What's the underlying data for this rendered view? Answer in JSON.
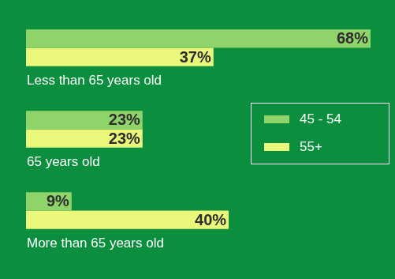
{
  "chart_data": {
    "type": "bar",
    "orientation": "horizontal",
    "categories": [
      "Less than 65 years old",
      "65 years old",
      "More than 65 years old"
    ],
    "series": [
      {
        "name": "45 - 54",
        "color": "#8fd36b",
        "values": [
          68,
          23,
          9
        ],
        "value_labels": [
          "68%",
          "23%",
          "9%"
        ]
      },
      {
        "name": "55+",
        "color": "#eaf77a",
        "values": [
          37,
          23,
          40
        ],
        "value_labels": [
          "37%",
          "23%",
          "40%"
        ]
      }
    ],
    "data_labels": true,
    "tick_labels": false,
    "grid": false,
    "legend": "right"
  }
}
